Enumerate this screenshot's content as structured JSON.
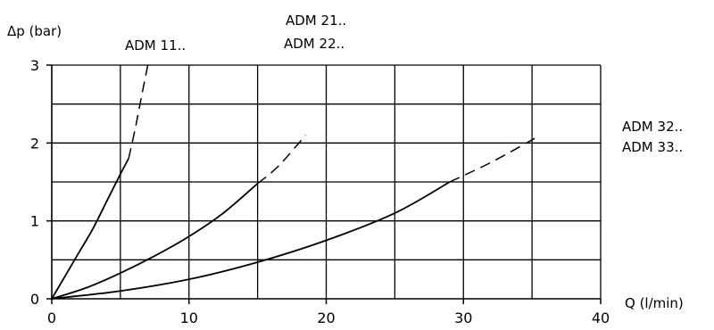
{
  "chart_data": {
    "type": "line",
    "ylabel": "Δp  (bar)",
    "xlabel": "Q  (l/min)",
    "xlim": [
      0,
      40
    ],
    "ylim": [
      0,
      3
    ],
    "x_ticks": [
      "0",
      "10",
      "20",
      "30",
      "40"
    ],
    "y_ticks": [
      "0",
      "1",
      "2",
      "3"
    ],
    "x_grid_step": 5,
    "y_grid_step": 0.5,
    "grid": true,
    "series_labels": {
      "adm11": [
        "ADM  11.."
      ],
      "adm21": [
        "ADM  21..",
        "ADM  22.."
      ],
      "adm32": [
        "ADM  32..",
        "ADM  33.."
      ]
    },
    "series": [
      {
        "solid": [
          [
            0,
            0
          ],
          [
            1,
            0.3
          ],
          [
            2,
            0.6
          ],
          [
            3,
            0.9
          ],
          [
            4,
            1.25
          ],
          [
            5,
            1.6
          ],
          [
            5.6,
            1.8
          ]
        ],
        "dashed": [
          [
            5.6,
            1.8
          ],
          [
            6.1,
            2.2
          ],
          [
            6.6,
            2.65
          ],
          [
            7,
            3.0
          ]
        ]
      },
      {
        "solid": [
          [
            0,
            0
          ],
          [
            2.5,
            0.14
          ],
          [
            5,
            0.33
          ],
          [
            7.5,
            0.55
          ],
          [
            10,
            0.8
          ],
          [
            12.5,
            1.1
          ],
          [
            15,
            1.48
          ]
        ],
        "dashed": [
          [
            15,
            1.48
          ],
          [
            16.5,
            1.7
          ],
          [
            18.5,
            2.1
          ]
        ]
      },
      {
        "solid": [
          [
            0,
            0
          ],
          [
            5,
            0.1
          ],
          [
            10,
            0.25
          ],
          [
            15,
            0.47
          ],
          [
            20,
            0.75
          ],
          [
            25,
            1.1
          ],
          [
            29,
            1.5
          ]
        ],
        "dashed": [
          [
            29,
            1.5
          ],
          [
            32,
            1.75
          ],
          [
            35.3,
            2.07
          ]
        ]
      }
    ]
  }
}
